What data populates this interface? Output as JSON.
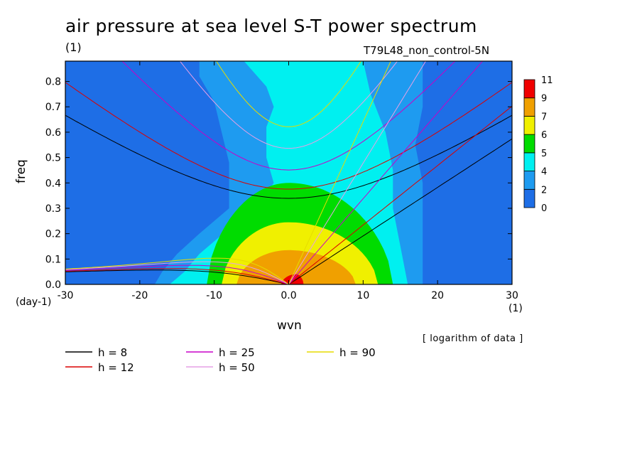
{
  "chart_data": {
    "type": "heatmap",
    "title": "air pressure at sea level S-T power spectrum",
    "subtitle_left": "(1)",
    "subtitle_right": "T79L48_non_control-5N",
    "xlabel": "wvn",
    "ylabel": "freq",
    "x_unit": "(1)",
    "y_unit": "(day-1)",
    "note": "[ logarithm of data ]",
    "xlim": [
      -30,
      30
    ],
    "ylim": [
      0,
      0.88
    ],
    "xticks": [
      -30,
      -20,
      -10,
      0,
      10,
      20,
      30
    ],
    "xtick_labels": [
      "-30",
      "-20",
      "-10",
      "0.0",
      "10",
      "20",
      "30"
    ],
    "yticks": [
      0,
      0.1,
      0.2,
      0.3,
      0.4,
      0.5,
      0.6,
      0.7,
      0.8
    ],
    "ytick_labels": [
      "0.0",
      "0.1",
      "0.2",
      "0.3",
      "0.4",
      "0.5",
      "0.6",
      "0.7",
      "0.8"
    ],
    "colorbar": {
      "levels": [
        "0",
        "2",
        "4",
        "5",
        "6",
        "7",
        "9",
        "11"
      ],
      "colors": [
        "#1e6ee6",
        "#1e9bf0",
        "#00f0f0",
        "#00dc00",
        "#f0f000",
        "#f0a000",
        "#f00000"
      ]
    },
    "contour_regions": [
      {
        "level": 2,
        "color": "#1e9bf0",
        "boundary": [
          [
            -30,
            0
          ],
          [
            -17,
            0.02
          ],
          [
            -14,
            0.08
          ],
          [
            -12,
            0.18
          ],
          [
            -8,
            0.28
          ],
          [
            -5,
            0.38
          ],
          [
            -6,
            0.48
          ],
          [
            -7,
            0.6
          ],
          [
            -8,
            0.72
          ],
          [
            -10,
            0.82
          ],
          [
            -11,
            0.88
          ],
          [
            30,
            0.88
          ],
          [
            30,
            0
          ],
          [
            -30,
            0
          ]
        ],
        "right_edge": [
          [
            18,
            0
          ],
          [
            18,
            0.3
          ],
          [
            17,
            0.6
          ],
          [
            18,
            0.88
          ]
        ]
      },
      {
        "level": 4,
        "color": "#00f0f0",
        "boundary_left": [
          [
            -16,
            0
          ],
          [
            -14,
            0.05
          ],
          [
            -12,
            0.12
          ],
          [
            -8,
            0.22
          ],
          [
            -4,
            0.32
          ],
          [
            -2,
            0.4
          ],
          [
            -3,
            0.5
          ],
          [
            -3,
            0.62
          ],
          [
            -2,
            0.7
          ],
          [
            -3,
            0.78
          ],
          [
            -6,
            0.88
          ]
        ],
        "boundary_right": [
          [
            10,
            0.88
          ],
          [
            11,
            0.75
          ],
          [
            13,
            0.6
          ],
          [
            14,
            0.45
          ],
          [
            14,
            0.3
          ],
          [
            15,
            0.15
          ],
          [
            16,
            0
          ]
        ]
      },
      {
        "level": 5,
        "color": "#00dc00",
        "peak": [
          0,
          0.4
        ],
        "x_extent": [
          -11,
          14
        ]
      },
      {
        "level": 6,
        "color": "#f0f000",
        "peak": [
          0,
          0.245
        ],
        "x_extent": [
          -9,
          12
        ]
      },
      {
        "level": 7,
        "color": "#f0a000",
        "peak": [
          0,
          0.135
        ],
        "x_extent": [
          -7,
          9
        ]
      },
      {
        "level": 9,
        "color": "#f00000",
        "peak": [
          1,
          0.04
        ],
        "x_extent": [
          -1,
          2
        ]
      }
    ],
    "series": [
      {
        "name": "h =  8",
        "h": 8,
        "color": "#000000"
      },
      {
        "name": "h = 12",
        "h": 12,
        "color": "#dc0000"
      },
      {
        "name": "h = 25",
        "h": 25,
        "color": "#c800c8"
      },
      {
        "name": "h = 50",
        "h": 50,
        "color": "#e6a0e6"
      },
      {
        "name": "h = 90",
        "h": 90,
        "color": "#e6dc00"
      }
    ],
    "grid": false,
    "legend_placement": "bottom-left"
  }
}
